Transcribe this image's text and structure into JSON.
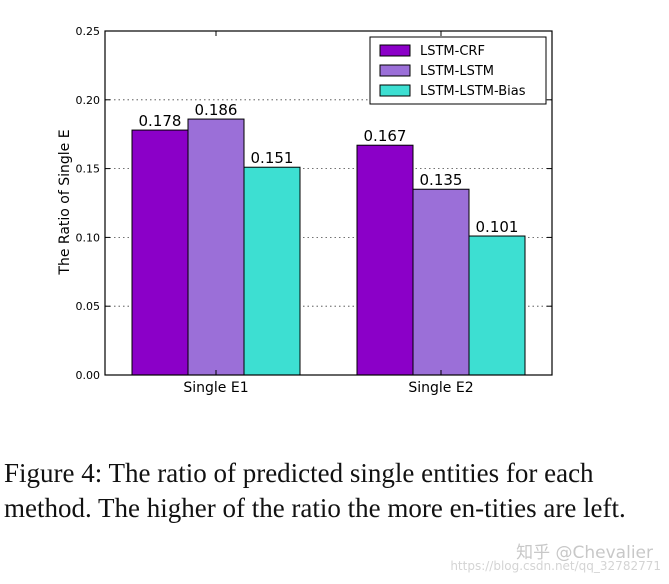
{
  "chart_data": {
    "type": "bar",
    "title": "",
    "xlabel": "",
    "ylabel": "The Ratio of Single E",
    "ylim": [
      0,
      0.25
    ],
    "yticks": [
      "0.00",
      "0.05",
      "0.10",
      "0.15",
      "0.20",
      "0.25"
    ],
    "grid": true,
    "legend_position": "top-right",
    "categories": [
      "Single E1",
      "Single E2"
    ],
    "series": [
      {
        "name": "LSTM-CRF",
        "color": "#8b00c8",
        "values": [
          0.178,
          0.167
        ],
        "labels": [
          "0.178",
          "0.167"
        ]
      },
      {
        "name": "LSTM-LSTM",
        "color": "#9b6fd8",
        "values": [
          0.186,
          0.135
        ],
        "labels": [
          "0.186",
          "0.135"
        ]
      },
      {
        "name": "LSTM-LSTM-Bias",
        "color": "#3ddfd2",
        "values": [
          0.151,
          0.101
        ],
        "labels": [
          "0.151",
          "0.101"
        ]
      }
    ]
  },
  "caption": "Figure 4: The ratio of predicted single entities for each method. The higher of the ratio the more en-tities are left.",
  "watermark": {
    "text": "知乎 @Chevalier",
    "url": "https://blog.csdn.net/qq_32782771"
  }
}
